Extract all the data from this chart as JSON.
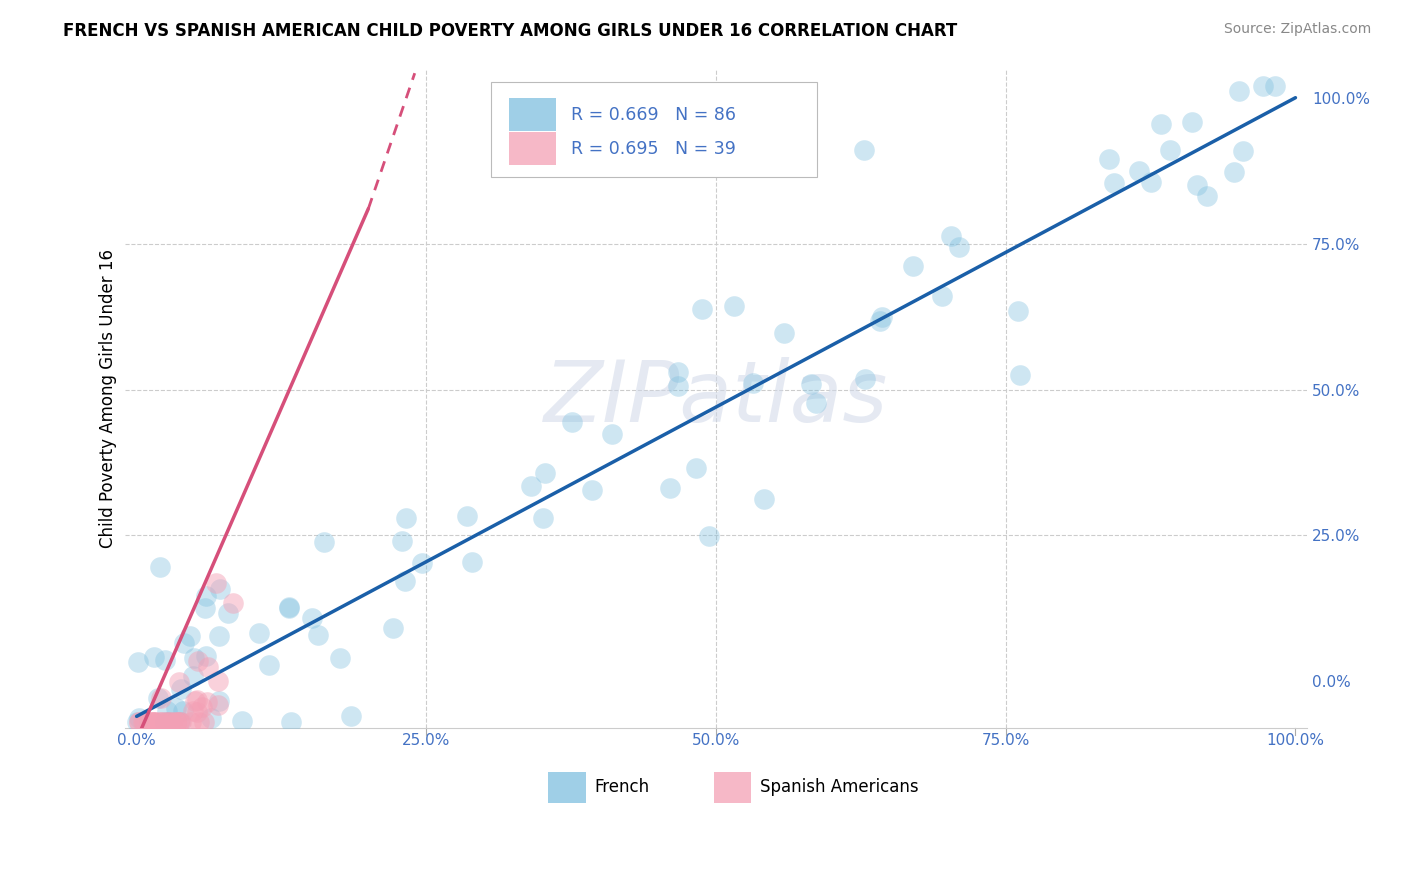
{
  "title": "FRENCH VS SPANISH AMERICAN CHILD POVERTY AMONG GIRLS UNDER 16 CORRELATION CHART",
  "source": "Source: ZipAtlas.com",
  "ylabel": "Child Poverty Among Girls Under 16",
  "xlim": [
    -0.01,
    1.01
  ],
  "ylim": [
    -0.08,
    1.05
  ],
  "french_R": 0.669,
  "french_N": 86,
  "spanish_R": 0.695,
  "spanish_N": 39,
  "french_color": "#7fbfdf",
  "spanish_color": "#f4a0b5",
  "french_line_color": "#1a5fa8",
  "spanish_line_color": "#d64f7a",
  "watermark_text": "ZIPatlas",
  "legend_french_label": "French",
  "legend_spanish_label": "Spanish Americans",
  "background_color": "#ffffff",
  "grid_color": "#cccccc",
  "tick_label_color": "#4472c4",
  "title_fontsize": 12,
  "scatter_size": 220,
  "scatter_alpha_french": 0.38,
  "scatter_alpha_spanish": 0.48,
  "french_line_intercept": -0.06,
  "french_line_slope": 1.06,
  "spanish_line_intercept": -0.35,
  "spanish_line_slope": 5.8
}
